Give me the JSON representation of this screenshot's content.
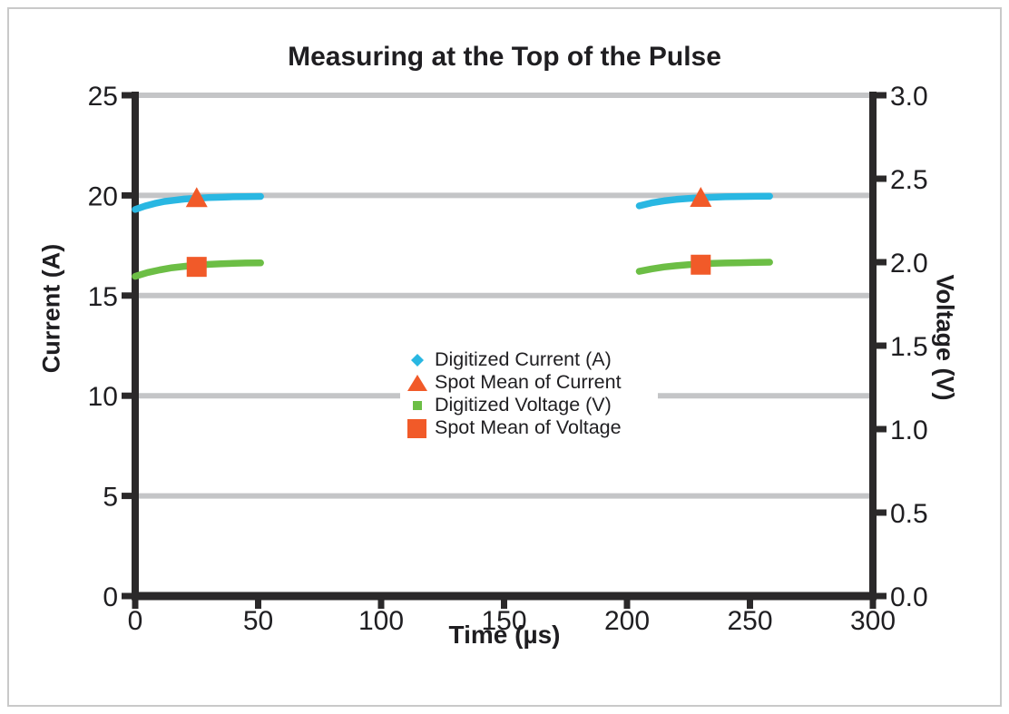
{
  "chart_data": {
    "type": "line",
    "title": "Measuring at the Top of the Pulse",
    "xlabel": "Time (µs)",
    "ylabel_left": "Current (A)",
    "ylabel_right": "Voltage (V)",
    "axes": {
      "x": {
        "min": 0,
        "max": 300,
        "ticks": [
          "0",
          "50",
          "100",
          "150",
          "200",
          "250",
          "300"
        ]
      },
      "y_left": {
        "min": 0,
        "max": 25,
        "ticks": [
          "0",
          "5",
          "10",
          "15",
          "20",
          "25"
        ]
      },
      "y_right": {
        "min": 0,
        "max": 3,
        "ticks": [
          "0.0",
          "0.5",
          "1.0",
          "1.5",
          "2.0",
          "2.5",
          "3.0"
        ]
      }
    },
    "grid": {
      "horizontal_at_left_ticks": [
        5,
        10,
        15,
        20,
        25
      ]
    },
    "colors": {
      "current": "#29b7e2",
      "voltage": "#6cbe45",
      "spot_mean": "#f15a29",
      "gridline": "#c4c5c7",
      "axis": "#2b292a",
      "text": "#1f1e21"
    },
    "series": [
      {
        "name": "Digitized Current (A)",
        "axis": "left",
        "color": "#29b7e2",
        "marker": "diamond",
        "segments": [
          [
            [
              0,
              19.3
            ],
            [
              4,
              19.47
            ],
            [
              8,
              19.6
            ],
            [
              12,
              19.7
            ],
            [
              16,
              19.76
            ],
            [
              20,
              19.82
            ],
            [
              25,
              19.86
            ],
            [
              30,
              19.89
            ],
            [
              35,
              19.91
            ],
            [
              40,
              19.93
            ],
            [
              45,
              19.94
            ],
            [
              51,
              19.95
            ]
          ],
          [
            [
              205,
              19.48
            ],
            [
              210,
              19.63
            ],
            [
              215,
              19.73
            ],
            [
              220,
              19.8
            ],
            [
              225,
              19.85
            ],
            [
              230,
              19.88
            ],
            [
              235,
              19.91
            ],
            [
              240,
              19.93
            ],
            [
              246,
              19.945
            ],
            [
              252,
              19.955
            ],
            [
              258,
              19.96
            ]
          ]
        ]
      },
      {
        "name": "Spot Mean of Current",
        "axis": "left",
        "color": "#f15a29",
        "marker": "triangle",
        "points": [
          [
            25,
            19.87
          ],
          [
            230,
            19.88
          ]
        ]
      },
      {
        "name": "Digitized Voltage (V)",
        "axis": "right",
        "color": "#6cbe45",
        "marker": "square-small",
        "segments": [
          [
            [
              0,
              1.915
            ],
            [
              5,
              1.938
            ],
            [
              10,
              1.954
            ],
            [
              15,
              1.967
            ],
            [
              20,
              1.975
            ],
            [
              25,
              1.982
            ],
            [
              30,
              1.987
            ],
            [
              35,
              1.99
            ],
            [
              40,
              1.993
            ],
            [
              45,
              1.995
            ],
            [
              51,
              1.996
            ]
          ],
          [
            [
              205,
              1.945
            ],
            [
              210,
              1.96
            ],
            [
              215,
              1.971
            ],
            [
              220,
              1.979
            ],
            [
              225,
              1.985
            ],
            [
              230,
              1.989
            ],
            [
              235,
              1.993
            ],
            [
              240,
              1.995
            ],
            [
              246,
              1.997
            ],
            [
              252,
              1.999
            ],
            [
              258,
              2.0
            ]
          ]
        ]
      },
      {
        "name": "Spot Mean of Voltage",
        "axis": "right",
        "color": "#f15a29",
        "marker": "square-large",
        "points": [
          [
            25,
            1.972
          ],
          [
            230,
            1.985
          ]
        ]
      }
    ],
    "legend": {
      "items": [
        {
          "label": "Digitized Current (A)",
          "marker": "diamond",
          "color": "#29b7e2"
        },
        {
          "label": "Spot Mean of Current",
          "marker": "triangle",
          "color": "#f15a29"
        },
        {
          "label": "Digitized Voltage (V)",
          "marker": "square-small",
          "color": "#6cbe45"
        },
        {
          "label": "Spot Mean of Voltage",
          "marker": "square-large",
          "color": "#f15a29"
        }
      ]
    }
  }
}
